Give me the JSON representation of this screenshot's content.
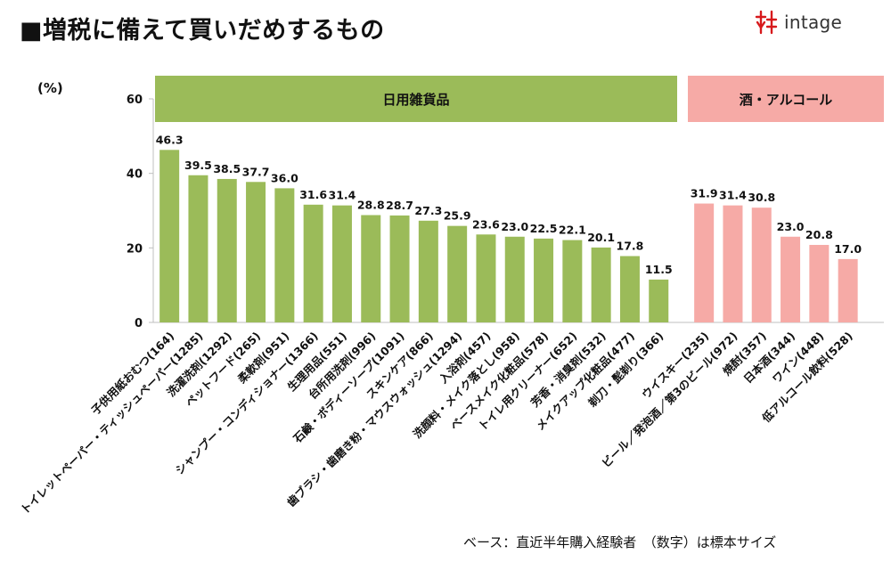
{
  "page": {
    "title": "■増税に備えて買いだめするもの",
    "unit_label": "(%)",
    "footnote": "ベース：直近半年購入経験者　（数字）は標本サイズ",
    "logo_text": "intage"
  },
  "colors": {
    "household": "#9bbb59",
    "alcohol": "#f6aaa6",
    "logo_mark": "#d7191c"
  },
  "chart_data": {
    "type": "bar",
    "ylim": [
      0,
      60
    ],
    "yticks": [
      0,
      20,
      40,
      60
    ],
    "grid": false,
    "groups": [
      {
        "name": "日用雑貨品",
        "color_key": "household",
        "categories": [
          "子供用紙おむつ(164)",
          "トイレットペーパー・ティッシュペーパー(1285)",
          "洗濯洗剤(1292)",
          "ペットフード(265)",
          "柔軟剤(951)",
          "シャンプー・コンディショナー(1366)",
          "生理用品(551)",
          "台所用洗剤(996)",
          "石鹸・ボディーソープ(1091)",
          "スキンケア(866)",
          "歯ブラシ・歯磨き粉・マウスウォッシュ(1294)",
          "入浴剤(457)",
          "洗顔料・メイク落とし(958)",
          "ベースメイク化粧品(578)",
          "トイレ用クリーナー(652)",
          "芳香・消臭剤(532)",
          "メイクアップ化粧品(477)",
          "剃刀・髭剃り(366)"
        ],
        "values": [
          46.3,
          39.5,
          38.5,
          37.7,
          36.0,
          31.6,
          31.4,
          28.8,
          28.7,
          27.3,
          25.9,
          23.6,
          23.0,
          22.5,
          22.1,
          20.1,
          17.8,
          11.5
        ],
        "value_labels": [
          "46.3",
          "39.5",
          "38.5",
          "37.7",
          "36.0",
          "31.6",
          "31.4",
          "28.8",
          "28.7",
          "27.3",
          "25.9",
          "23.6",
          "23.0",
          "22.5",
          "22.1",
          "20.1",
          "17.8",
          "11.5"
        ]
      },
      {
        "name": "酒・アルコール",
        "color_key": "alcohol",
        "categories": [
          "ウイスキー(235)",
          "ビール／発泡酒／第3のビール(972)",
          "焼酎(357)",
          "日本酒(344)",
          "ワイン(448)",
          "低アルコール飲料(528)"
        ],
        "values": [
          31.9,
          31.4,
          30.8,
          23.0,
          20.8,
          17.0
        ],
        "value_labels": [
          "31.9",
          "31.4",
          "30.8",
          "23.0",
          "20.8",
          "17.0"
        ]
      }
    ]
  }
}
